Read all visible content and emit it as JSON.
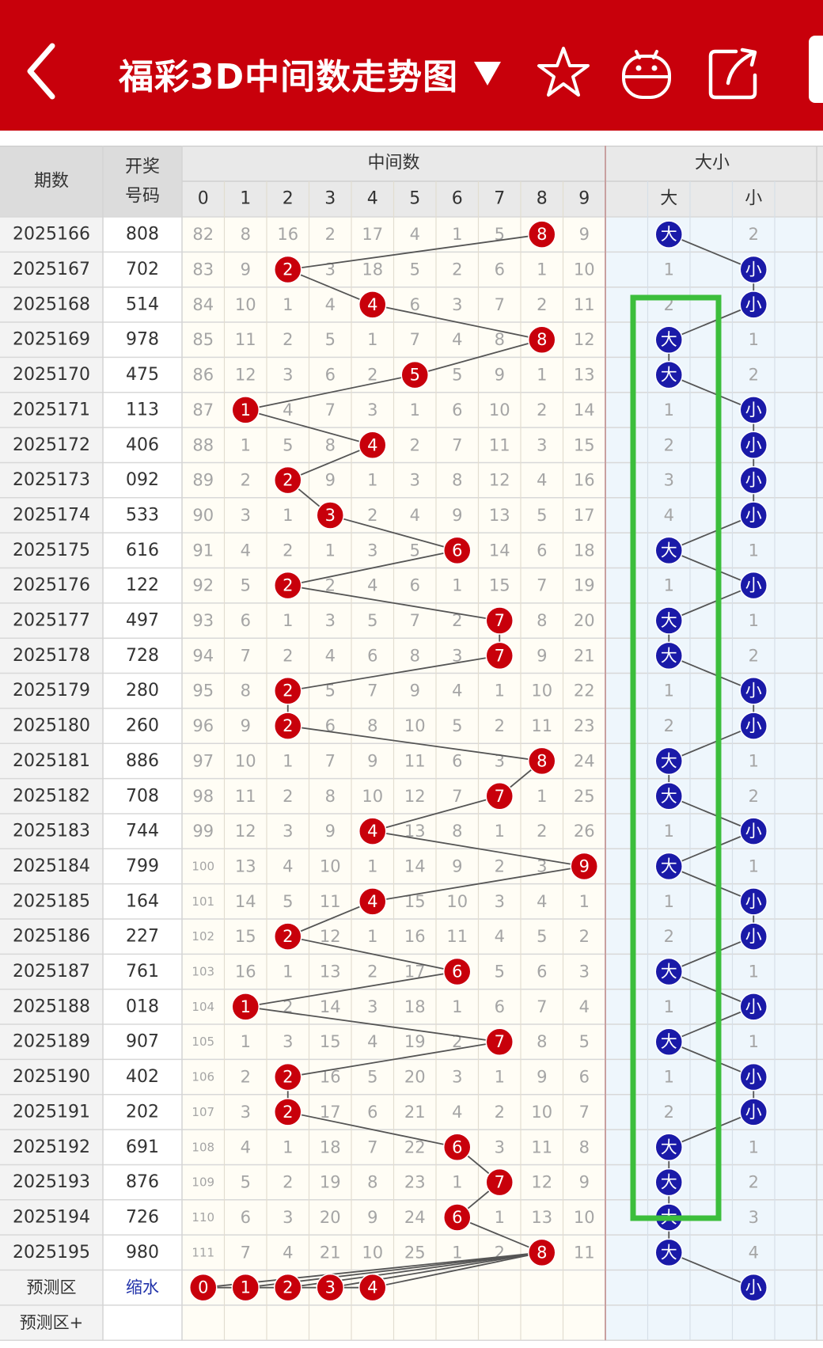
{
  "header": {
    "title": "福彩3D中间数走势图",
    "icons": [
      "back-arrow-icon",
      "dropdown-triangle-icon",
      "star-icon",
      "robot-icon",
      "share-icon"
    ],
    "bg_color": "#c8000b"
  },
  "table": {
    "col_period": "期数",
    "col_draw_line1": "开奖",
    "col_draw_line2": "号码",
    "group_mid": "中间数",
    "group_size": "大小",
    "mid_digits": [
      "0",
      "1",
      "2",
      "3",
      "4",
      "5",
      "6",
      "7",
      "8",
      "9"
    ],
    "size_big": "大",
    "size_small": "小",
    "predict_label": "预测区",
    "predict_note": "缩水",
    "predict_digits": [
      "0",
      "1",
      "2",
      "3",
      "4"
    ],
    "predict_plus_label": "预测区+",
    "rows": [
      {
        "period": "2025166",
        "draw": "808",
        "mid": 8,
        "miss": [
          "82",
          "8",
          "16",
          "2",
          "17",
          "4",
          "1",
          "5",
          "8",
          "9"
        ],
        "size": "big",
        "smiss": [
          "大",
          "2"
        ]
      },
      {
        "period": "2025167",
        "draw": "702",
        "mid": 2,
        "miss": [
          "83",
          "9",
          "2",
          "3",
          "18",
          "5",
          "2",
          "6",
          "1",
          "10"
        ],
        "size": "small",
        "smiss": [
          "1",
          "小"
        ]
      },
      {
        "period": "2025168",
        "draw": "514",
        "mid": 4,
        "miss": [
          "84",
          "10",
          "1",
          "4",
          "4",
          "6",
          "3",
          "7",
          "2",
          "11"
        ],
        "size": "small",
        "smiss": [
          "2",
          "小"
        ]
      },
      {
        "period": "2025169",
        "draw": "978",
        "mid": 8,
        "miss": [
          "85",
          "11",
          "2",
          "5",
          "1",
          "7",
          "4",
          "8",
          "8",
          "12"
        ],
        "size": "big",
        "smiss": [
          "大",
          "1"
        ]
      },
      {
        "period": "2025170",
        "draw": "475",
        "mid": 5,
        "miss": [
          "86",
          "12",
          "3",
          "6",
          "2",
          "5",
          "5",
          "9",
          "1",
          "13"
        ],
        "size": "big",
        "smiss": [
          "大",
          "2"
        ]
      },
      {
        "period": "2025171",
        "draw": "113",
        "mid": 1,
        "miss": [
          "87",
          "1",
          "4",
          "7",
          "3",
          "1",
          "6",
          "10",
          "2",
          "14"
        ],
        "size": "small",
        "smiss": [
          "1",
          "小"
        ]
      },
      {
        "period": "2025172",
        "draw": "406",
        "mid": 4,
        "miss": [
          "88",
          "1",
          "5",
          "8",
          "4",
          "2",
          "7",
          "11",
          "3",
          "15"
        ],
        "size": "small",
        "smiss": [
          "2",
          "小"
        ]
      },
      {
        "period": "2025173",
        "draw": "092",
        "mid": 2,
        "miss": [
          "89",
          "2",
          "2",
          "9",
          "1",
          "3",
          "8",
          "12",
          "4",
          "16"
        ],
        "size": "small",
        "smiss": [
          "3",
          "小"
        ]
      },
      {
        "period": "2025174",
        "draw": "533",
        "mid": 3,
        "miss": [
          "90",
          "3",
          "1",
          "3",
          "2",
          "4",
          "9",
          "13",
          "5",
          "17"
        ],
        "size": "small",
        "smiss": [
          "4",
          "小"
        ]
      },
      {
        "period": "2025175",
        "draw": "616",
        "mid": 6,
        "miss": [
          "91",
          "4",
          "2",
          "1",
          "3",
          "5",
          "6",
          "14",
          "6",
          "18"
        ],
        "size": "big",
        "smiss": [
          "大",
          "1"
        ]
      },
      {
        "period": "2025176",
        "draw": "122",
        "mid": 2,
        "miss": [
          "92",
          "5",
          "2",
          "2",
          "4",
          "6",
          "1",
          "15",
          "7",
          "19"
        ],
        "size": "small",
        "smiss": [
          "1",
          "小"
        ]
      },
      {
        "period": "2025177",
        "draw": "497",
        "mid": 7,
        "miss": [
          "93",
          "6",
          "1",
          "3",
          "5",
          "7",
          "2",
          "7",
          "8",
          "20"
        ],
        "size": "big",
        "smiss": [
          "大",
          "1"
        ]
      },
      {
        "period": "2025178",
        "draw": "728",
        "mid": 7,
        "miss": [
          "94",
          "7",
          "2",
          "4",
          "6",
          "8",
          "3",
          "7",
          "9",
          "21"
        ],
        "size": "big",
        "smiss": [
          "大",
          "2"
        ]
      },
      {
        "period": "2025179",
        "draw": "280",
        "mid": 2,
        "miss": [
          "95",
          "8",
          "2",
          "5",
          "7",
          "9",
          "4",
          "1",
          "10",
          "22"
        ],
        "size": "small",
        "smiss": [
          "1",
          "小"
        ]
      },
      {
        "period": "2025180",
        "draw": "260",
        "mid": 2,
        "miss": [
          "96",
          "9",
          "2",
          "6",
          "8",
          "10",
          "5",
          "2",
          "11",
          "23"
        ],
        "size": "small",
        "smiss": [
          "2",
          "小"
        ]
      },
      {
        "period": "2025181",
        "draw": "886",
        "mid": 8,
        "miss": [
          "97",
          "10",
          "1",
          "7",
          "9",
          "11",
          "6",
          "3",
          "8",
          "24"
        ],
        "size": "big",
        "smiss": [
          "大",
          "1"
        ]
      },
      {
        "period": "2025182",
        "draw": "708",
        "mid": 7,
        "miss": [
          "98",
          "11",
          "2",
          "8",
          "10",
          "12",
          "7",
          "7",
          "1",
          "25"
        ],
        "size": "big",
        "smiss": [
          "大",
          "2"
        ]
      },
      {
        "period": "2025183",
        "draw": "744",
        "mid": 4,
        "miss": [
          "99",
          "12",
          "3",
          "9",
          "4",
          "13",
          "8",
          "1",
          "2",
          "26"
        ],
        "size": "small",
        "smiss": [
          "1",
          "小"
        ]
      },
      {
        "period": "2025184",
        "draw": "799",
        "mid": 9,
        "miss": [
          "100",
          "13",
          "4",
          "10",
          "1",
          "14",
          "9",
          "2",
          "3",
          "9"
        ],
        "size": "big",
        "smiss": [
          "大",
          "1"
        ]
      },
      {
        "period": "2025185",
        "draw": "164",
        "mid": 4,
        "miss": [
          "101",
          "14",
          "5",
          "11",
          "4",
          "15",
          "10",
          "3",
          "4",
          "1"
        ],
        "size": "small",
        "smiss": [
          "1",
          "小"
        ]
      },
      {
        "period": "2025186",
        "draw": "227",
        "mid": 2,
        "miss": [
          "102",
          "15",
          "2",
          "12",
          "1",
          "16",
          "11",
          "4",
          "5",
          "2"
        ],
        "size": "small",
        "smiss": [
          "2",
          "小"
        ]
      },
      {
        "period": "2025187",
        "draw": "761",
        "mid": 6,
        "miss": [
          "103",
          "16",
          "1",
          "13",
          "2",
          "17",
          "6",
          "5",
          "6",
          "3"
        ],
        "size": "big",
        "smiss": [
          "大",
          "1"
        ]
      },
      {
        "period": "2025188",
        "draw": "018",
        "mid": 1,
        "miss": [
          "104",
          "1",
          "2",
          "14",
          "3",
          "18",
          "1",
          "6",
          "7",
          "4"
        ],
        "size": "small",
        "smiss": [
          "1",
          "小"
        ]
      },
      {
        "period": "2025189",
        "draw": "907",
        "mid": 7,
        "miss": [
          "105",
          "1",
          "3",
          "15",
          "4",
          "19",
          "2",
          "7",
          "8",
          "5"
        ],
        "size": "big",
        "smiss": [
          "大",
          "1"
        ]
      },
      {
        "period": "2025190",
        "draw": "402",
        "mid": 2,
        "miss": [
          "106",
          "2",
          "2",
          "16",
          "5",
          "20",
          "3",
          "1",
          "9",
          "6"
        ],
        "size": "small",
        "smiss": [
          "1",
          "小"
        ]
      },
      {
        "period": "2025191",
        "draw": "202",
        "mid": 2,
        "miss": [
          "107",
          "3",
          "2",
          "17",
          "6",
          "21",
          "4",
          "2",
          "10",
          "7"
        ],
        "size": "small",
        "smiss": [
          "2",
          "小"
        ]
      },
      {
        "period": "2025192",
        "draw": "691",
        "mid": 6,
        "miss": [
          "108",
          "4",
          "1",
          "18",
          "7",
          "22",
          "6",
          "3",
          "11",
          "8"
        ],
        "size": "big",
        "smiss": [
          "大",
          "1"
        ]
      },
      {
        "period": "2025193",
        "draw": "876",
        "mid": 7,
        "miss": [
          "109",
          "5",
          "2",
          "19",
          "8",
          "23",
          "1",
          "7",
          "12",
          "9"
        ],
        "size": "big",
        "smiss": [
          "大",
          "2"
        ]
      },
      {
        "period": "2025194",
        "draw": "726",
        "mid": 6,
        "miss": [
          "110",
          "6",
          "3",
          "20",
          "9",
          "24",
          "6",
          "1",
          "13",
          "10"
        ],
        "size": "big",
        "smiss": [
          "大",
          "3"
        ]
      },
      {
        "period": "2025195",
        "draw": "980",
        "mid": 8,
        "miss": [
          "111",
          "7",
          "4",
          "21",
          "10",
          "25",
          "1",
          "2",
          "8",
          "11"
        ],
        "size": "big",
        "smiss": [
          "大",
          "4"
        ]
      }
    ]
  },
  "colors": {
    "ball_red": "#c8000b",
    "ball_blue": "#1a1aa8",
    "highlight_green": "#3cbe3c",
    "miss_text": "#a5a5a5",
    "size_bg": "#eef6fc"
  }
}
